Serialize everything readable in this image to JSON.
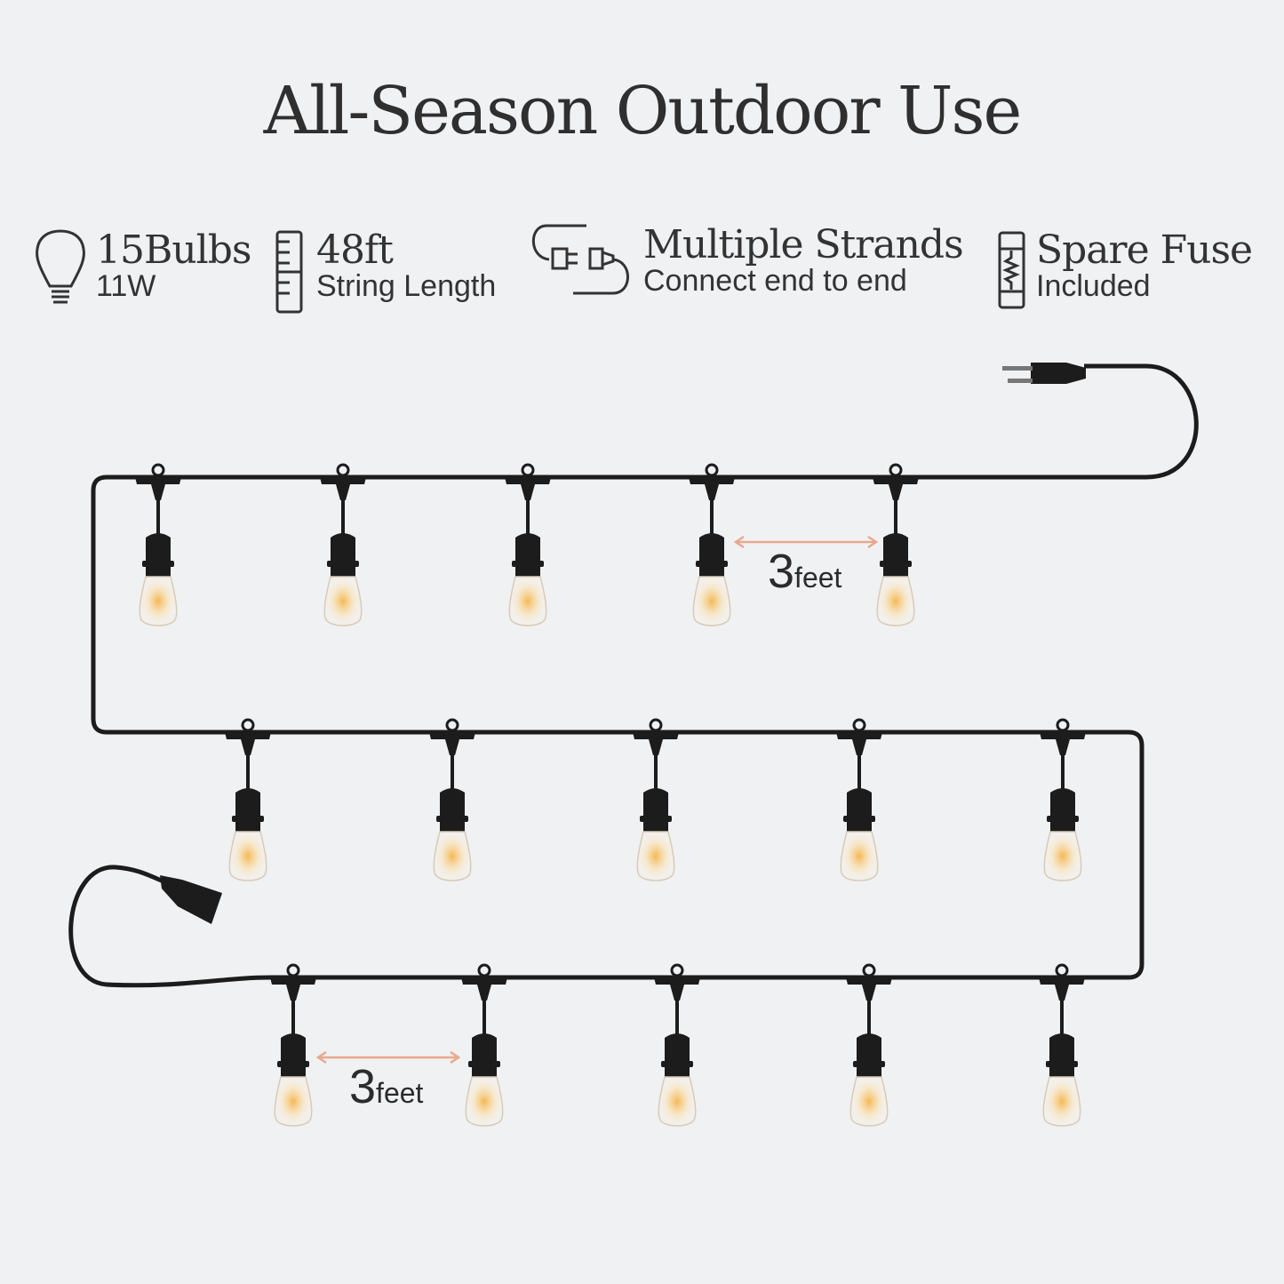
{
  "title": "All-Season Outdoor Use",
  "features": [
    {
      "icon": "bulb-icon",
      "main": "15Bulbs",
      "sub": "11W"
    },
    {
      "icon": "ruler-icon",
      "main": "48ft",
      "sub": "String Length"
    },
    {
      "icon": "plug-connect-icon",
      "main": "Multiple Strands",
      "sub": "Connect end to end"
    },
    {
      "icon": "fuse-icon",
      "main": "Spare Fuse",
      "sub": "Included"
    }
  ],
  "spacing_labels": [
    {
      "number": "3",
      "unit": "feet"
    },
    {
      "number": "3",
      "unit": "feet"
    }
  ],
  "colors": {
    "background": "#f0f1f3",
    "cable": "#1c1c1c",
    "arrow": "#e8a98c",
    "glow": "#f5b54a"
  }
}
